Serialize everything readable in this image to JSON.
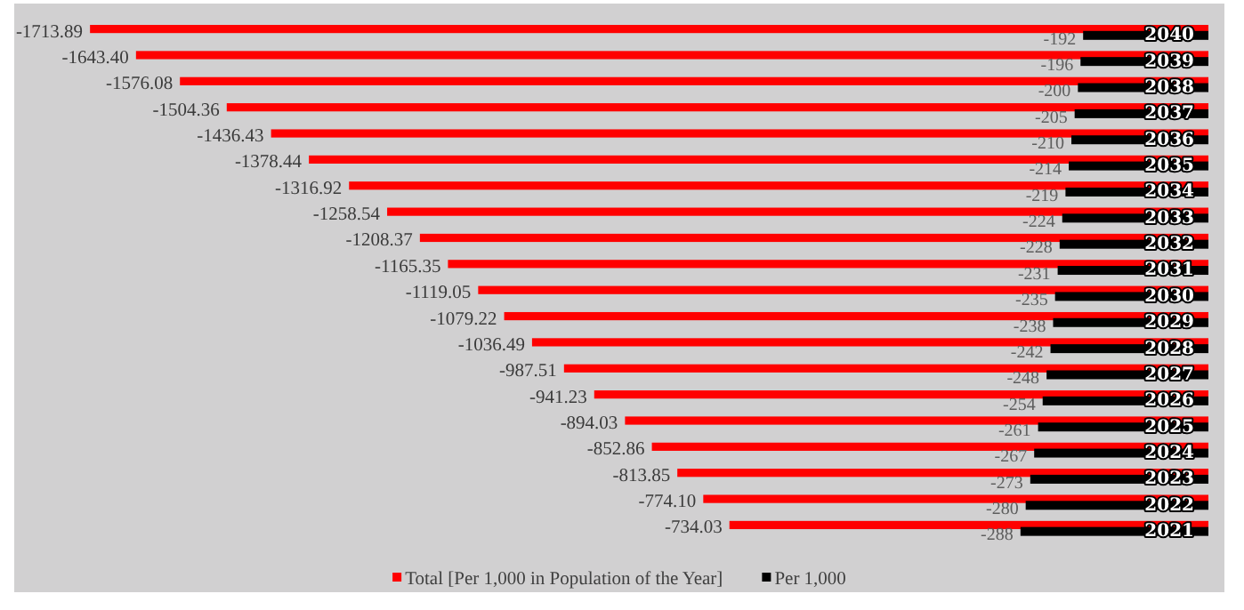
{
  "chart_data": {
    "type": "bar",
    "orientation": "horizontal",
    "categories": [
      "2040",
      "2039",
      "2038",
      "2037",
      "2036",
      "2035",
      "2034",
      "2033",
      "2032",
      "2031",
      "2030",
      "2029",
      "2028",
      "2027",
      "2026",
      "2025",
      "2024",
      "2023",
      "2022",
      "2021"
    ],
    "series": [
      {
        "name": "Total [Per 1,000 in Population of the Year]",
        "color": "#ff0000",
        "values": [
          -1713.89,
          -1643.4,
          -1576.08,
          -1504.36,
          -1436.43,
          -1378.44,
          -1316.92,
          -1258.54,
          -1208.37,
          -1165.35,
          -1119.05,
          -1079.22,
          -1036.49,
          -987.51,
          -941.23,
          -894.03,
          -852.86,
          -813.85,
          -774.1,
          -734.03
        ],
        "value_labels": [
          "-1713.89",
          "-1643.40",
          "-1576.08",
          "-1504.36",
          "-1436.43",
          "-1378.44",
          "-1316.92",
          "-1258.54",
          "-1208.37",
          "-1165.35",
          "-1119.05",
          "-1079.22",
          "-1036.49",
          "-987.51",
          "-941.23",
          "-894.03",
          "-852.86",
          "-813.85",
          "-774.10",
          "-734.03"
        ]
      },
      {
        "name": "Per 1,000",
        "color": "#000000",
        "values": [
          -192,
          -196,
          -200,
          -205,
          -210,
          -214,
          -219,
          -224,
          -228,
          -231,
          -235,
          -238,
          -242,
          -248,
          -254,
          -261,
          -267,
          -273,
          -280,
          -288
        ],
        "value_labels": [
          "-192",
          "-196",
          "-200",
          "-205",
          "-210",
          "-214",
          "-219",
          "-224",
          "-228",
          "-231",
          "-235",
          "-238",
          "-242",
          "-248",
          "-254",
          "-261",
          "-267",
          "-273",
          "-280",
          "-288"
        ]
      }
    ],
    "xlim": [
      -1830,
      0
    ],
    "tick_labels": "y",
    "legend": "bottom"
  }
}
